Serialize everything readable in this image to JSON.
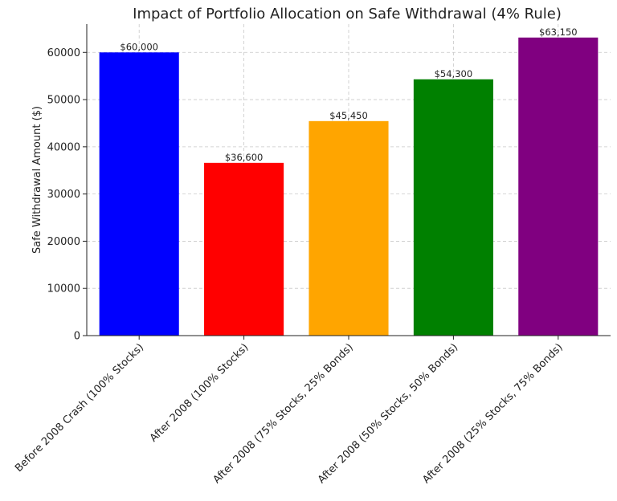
{
  "chart_data": {
    "type": "bar",
    "title": "Impact of Portfolio Allocation on Safe Withdrawal (4% Rule)",
    "xlabel": "",
    "ylabel": "Safe Withdrawal Amount ($)",
    "ylim": [
      0,
      66000
    ],
    "yticks": [
      0,
      10000,
      20000,
      30000,
      40000,
      50000,
      60000
    ],
    "grid": true,
    "categories": [
      "Before 2008 Crash (100% Stocks)",
      "After 2008 (100% Stocks)",
      "After 2008 (75% Stocks, 25% Bonds)",
      "After 2008 (50% Stocks, 50% Bonds)",
      "After 2008 (25% Stocks, 75% Bonds)"
    ],
    "values": [
      60000,
      36600,
      45450,
      54300,
      63150
    ],
    "data_labels": [
      "$60,000",
      "$36,600",
      "$45,450",
      "$54,300",
      "$63,150"
    ],
    "colors": [
      "#0000ff",
      "#ff0000",
      "#ffa500",
      "#008000",
      "#800080"
    ]
  }
}
